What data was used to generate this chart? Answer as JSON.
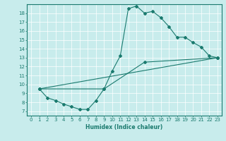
{
  "title": "",
  "xlabel": "Humidex (Indice chaleur)",
  "bg_color": "#c8ecec",
  "line_color": "#1a7a6e",
  "grid_color": "#ffffff",
  "xlim": [
    -0.5,
    23.5
  ],
  "ylim": [
    6.5,
    19.0
  ],
  "yticks": [
    7,
    8,
    9,
    10,
    11,
    12,
    13,
    14,
    15,
    16,
    17,
    18
  ],
  "xticks": [
    0,
    1,
    2,
    3,
    4,
    5,
    6,
    7,
    8,
    9,
    10,
    11,
    12,
    13,
    14,
    15,
    16,
    17,
    18,
    19,
    20,
    21,
    22,
    23
  ],
  "line1_x": [
    1,
    2,
    3,
    4,
    5,
    6,
    7,
    8,
    9,
    10,
    11,
    12,
    13,
    14,
    15,
    16,
    17,
    18,
    19,
    20,
    21,
    22,
    23
  ],
  "line1_y": [
    9.5,
    8.5,
    8.2,
    7.8,
    7.5,
    7.2,
    7.2,
    8.2,
    9.5,
    11.5,
    13.2,
    18.5,
    18.8,
    18.0,
    18.2,
    17.5,
    16.5,
    15.3,
    15.3,
    14.7,
    14.2,
    13.2,
    13.0
  ],
  "line2_x": [
    1,
    9,
    14,
    23
  ],
  "line2_y": [
    9.5,
    9.5,
    12.5,
    13.0
  ],
  "line3_x": [
    1,
    23
  ],
  "line3_y": [
    9.5,
    13.0
  ],
  "tickfont": 5.0,
  "xlabel_fontsize": 5.5,
  "linewidth": 0.8,
  "markersize": 2.0
}
